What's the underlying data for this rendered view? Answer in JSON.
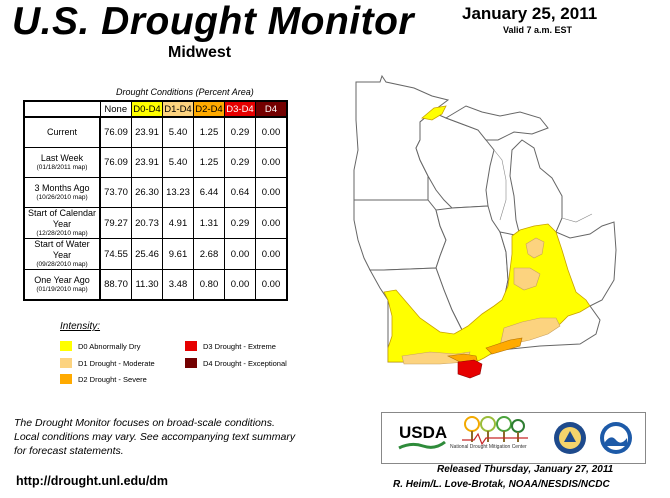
{
  "header": {
    "title": "U.S. Drought Monitor",
    "region": "Midwest",
    "date": "January 25, 2011",
    "valid": "Valid 7 a.m. EST"
  },
  "table": {
    "caption": "Drought Conditions (Percent Area)",
    "columns": [
      "None",
      "D0-D4",
      "D1-D4",
      "D2-D4",
      "D3-D4",
      "D4"
    ],
    "column_colors": [
      "#ffffff",
      "#ffff00",
      "#fcd37f",
      "#ffaa00",
      "#e60000",
      "#730000"
    ],
    "rows": [
      {
        "label": "Current",
        "sub": "",
        "values": [
          "76.09",
          "23.91",
          "5.40",
          "1.25",
          "0.29",
          "0.00"
        ]
      },
      {
        "label": "Last Week",
        "sub": "(01/18/2011 map)",
        "values": [
          "76.09",
          "23.91",
          "5.40",
          "1.25",
          "0.29",
          "0.00"
        ]
      },
      {
        "label": "3 Months Ago",
        "sub": "(10/26/2010 map)",
        "values": [
          "73.70",
          "26.30",
          "13.23",
          "6.44",
          "0.64",
          "0.00"
        ]
      },
      {
        "label": "Start of Calendar Year",
        "sub": "(12/28/2010 map)",
        "values": [
          "79.27",
          "20.73",
          "4.91",
          "1.31",
          "0.29",
          "0.00"
        ]
      },
      {
        "label": "Start of Water Year",
        "sub": "(09/28/2010 map)",
        "values": [
          "74.55",
          "25.46",
          "9.61",
          "2.68",
          "0.00",
          "0.00"
        ]
      },
      {
        "label": "One Year Ago",
        "sub": "(01/19/2010 map)",
        "values": [
          "88.70",
          "11.30",
          "3.48",
          "0.80",
          "0.00",
          "0.00"
        ]
      }
    ]
  },
  "legend": {
    "title": "Intensity:",
    "items": [
      {
        "label": "D0 Abnormally Dry",
        "color": "#ffff00"
      },
      {
        "label": "D1 Drought - Moderate",
        "color": "#fcd37f"
      },
      {
        "label": "D2 Drought - Severe",
        "color": "#ffaa00"
      },
      {
        "label": "D3 Drought - Extreme",
        "color": "#e60000"
      },
      {
        "label": "D4 Drought - Exceptional",
        "color": "#730000"
      }
    ]
  },
  "footer": {
    "note_line1": "The Drought Monitor focuses on broad-scale conditions.",
    "note_line2": "Local conditions may vary. See accompanying text summary",
    "note_line3": "for forecast statements.",
    "url": "http://drought.unl.edu/dm",
    "released": "Released Thursday, January 27, 2011",
    "authors": "R. Heim/L. Love-Brotak, NOAA/NESDIS/NCDC"
  },
  "logos": {
    "usda": "USDA",
    "ndmc": "National Drought Mitigation Center"
  }
}
